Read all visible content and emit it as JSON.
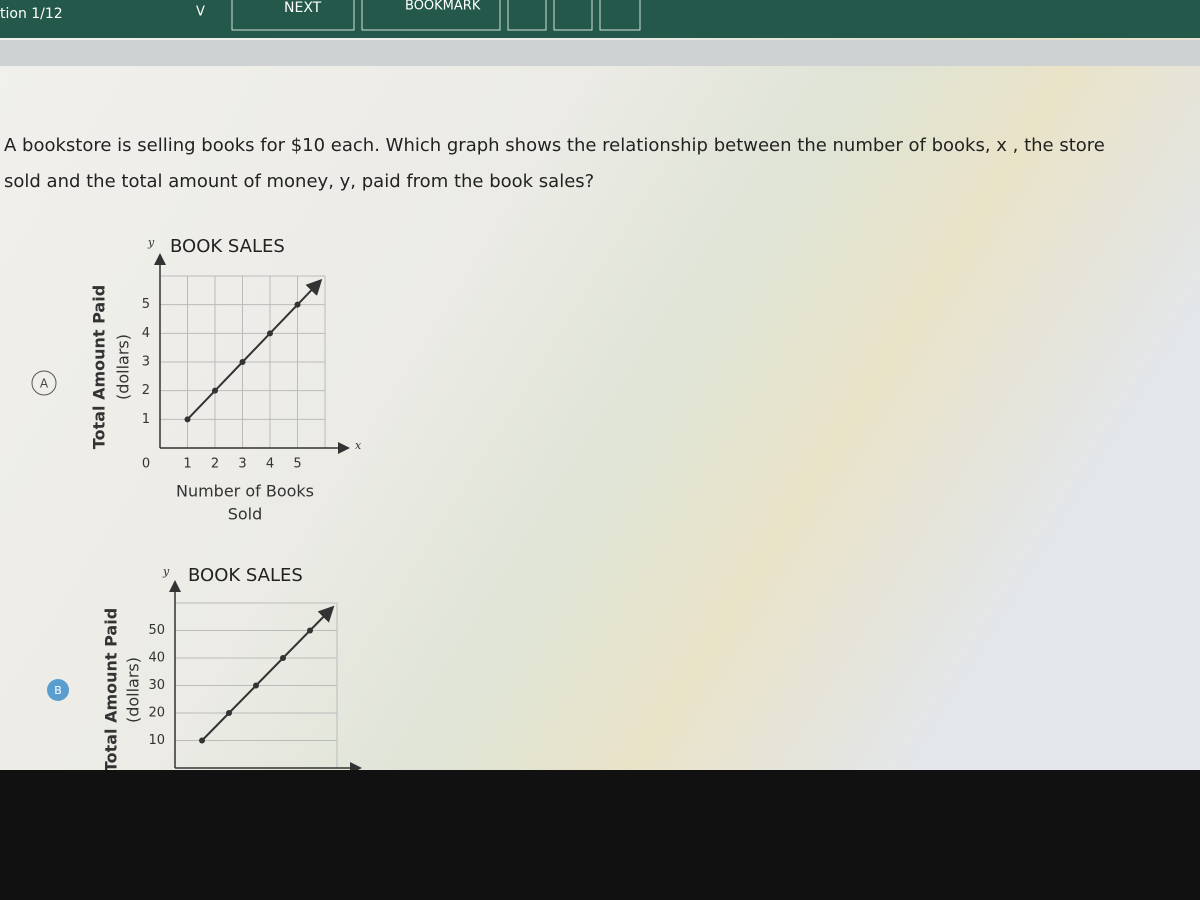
{
  "header": {
    "question_counter": "tion 1/12",
    "dropdown": "V",
    "next": "NEXT",
    "bookmark": "BOOKMARK"
  },
  "question": {
    "lines": [
      "A bookstore is selling books for $10 each. Which graph shows the relationship between the number of books, x , the store",
      "sold and the total amount of money, y, paid from the book sales?"
    ]
  },
  "options": [
    {
      "label": "A",
      "chart": {
        "type": "line",
        "title": "BOOK SALES",
        "y_axis_name": "y",
        "x_axis_name": "x",
        "y_label": [
          "Total Amount Paid",
          "(dollars)"
        ],
        "x_label": [
          "Number of Books",
          "Sold"
        ],
        "x": [
          1,
          2,
          3,
          4,
          5
        ],
        "values": [
          1,
          2,
          3,
          4,
          5
        ],
        "color": "#333333",
        "xlim": [
          0,
          6
        ],
        "ylim": [
          0,
          6
        ],
        "xticks": [
          0,
          1,
          2,
          3,
          4,
          5
        ],
        "yticks": [
          1,
          2,
          3,
          4,
          5
        ],
        "grid": true
      }
    },
    {
      "label": "B",
      "chart": {
        "type": "line",
        "title": "BOOK SALES",
        "y_axis_name": "y",
        "y_label": [
          "Total Amount Paid",
          "(dollars)"
        ],
        "x": [
          1,
          2,
          3,
          4,
          5
        ],
        "values": [
          10,
          20,
          30,
          40,
          50
        ],
        "color": "#333333",
        "xlim": [
          0,
          6
        ],
        "ylim": [
          0,
          60
        ],
        "yticks": [
          10,
          20,
          30,
          40,
          50
        ],
        "grid": true
      }
    }
  ]
}
